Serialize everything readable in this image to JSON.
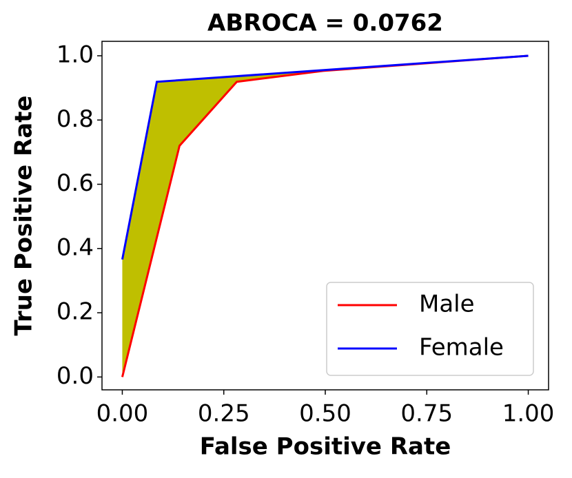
{
  "chart_data": {
    "type": "line",
    "title": "ABROCA = 0.0762",
    "x_label": "False Positive Rate",
    "y_label": "True Positive Rate",
    "series": [
      {
        "name": "Male",
        "color": "#ff0000",
        "x": [
          0,
          0.141,
          0.282,
          0.495,
          1
        ],
        "values": [
          0,
          0.72,
          0.919,
          0.953,
          1
        ]
      },
      {
        "name": "Female",
        "color": "#0000ff",
        "x": [
          0,
          0.085,
          1
        ],
        "values": [
          0.366,
          0.919,
          1
        ]
      }
    ],
    "fill_color": "#bfbf00",
    "xlim": [
      -0.05,
      1.05
    ],
    "ylim": [
      -0.04,
      1.045
    ],
    "xticks": [
      {
        "value": 0,
        "label": "0.00"
      },
      {
        "value": 0.25,
        "label": "0.25"
      },
      {
        "value": 0.5,
        "label": "0.50"
      },
      {
        "value": 0.75,
        "label": "0.75"
      },
      {
        "value": 1,
        "label": "1.00"
      }
    ],
    "yticks": [
      {
        "value": 0,
        "label": "0.0"
      },
      {
        "value": 0.2,
        "label": "0.2"
      },
      {
        "value": 0.4,
        "label": "0.4"
      },
      {
        "value": 0.6,
        "label": "0.6"
      },
      {
        "value": 0.8,
        "label": "0.8"
      },
      {
        "value": 1,
        "label": "1.0"
      }
    ],
    "legend": "lower right",
    "grid": false
  }
}
